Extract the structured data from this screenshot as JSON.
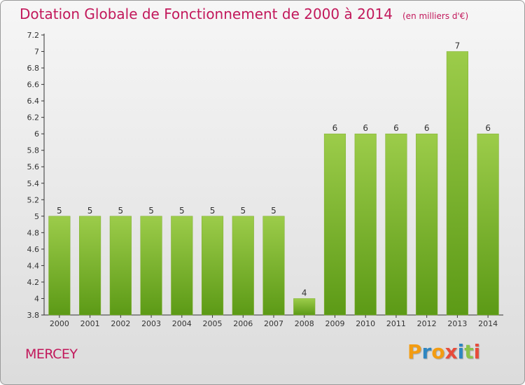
{
  "header": {
    "title": "Dotation Globale de Fonctionnement de 2000 à 2014",
    "unit": "(en milliers d'€)"
  },
  "commune": "MERCEY",
  "logo": {
    "text": "Proxiti"
  },
  "colors": {
    "title": "#c2185b",
    "bar_top": "#9ccc4a",
    "bar_bottom": "#5c9a16"
  },
  "chart_data": {
    "type": "bar",
    "title": "Dotation Globale de Fonctionnement de 2000 à 2014",
    "categories": [
      "2000",
      "2001",
      "2002",
      "2003",
      "2004",
      "2005",
      "2006",
      "2007",
      "2008",
      "2009",
      "2010",
      "2011",
      "2012",
      "2013",
      "2014"
    ],
    "values": [
      5,
      5,
      5,
      5,
      5,
      5,
      5,
      5,
      4,
      6,
      6,
      6,
      6,
      7,
      6
    ],
    "ylim": [
      3.8,
      7.2
    ],
    "yticks": [
      "3.8",
      "4",
      "4.2",
      "4.4",
      "4.6",
      "4.8",
      "5",
      "5.2",
      "5.4",
      "5.6",
      "5.8",
      "6",
      "6.2",
      "6.4",
      "6.6",
      "6.8",
      "7",
      "7.2"
    ],
    "data_labels": [
      "5",
      "5",
      "5",
      "5",
      "5",
      "5",
      "5",
      "5",
      "4",
      "6",
      "6",
      "6",
      "6",
      "7",
      "6"
    ],
    "xlabel": "",
    "ylabel": "",
    "grid": false,
    "legend": false
  }
}
